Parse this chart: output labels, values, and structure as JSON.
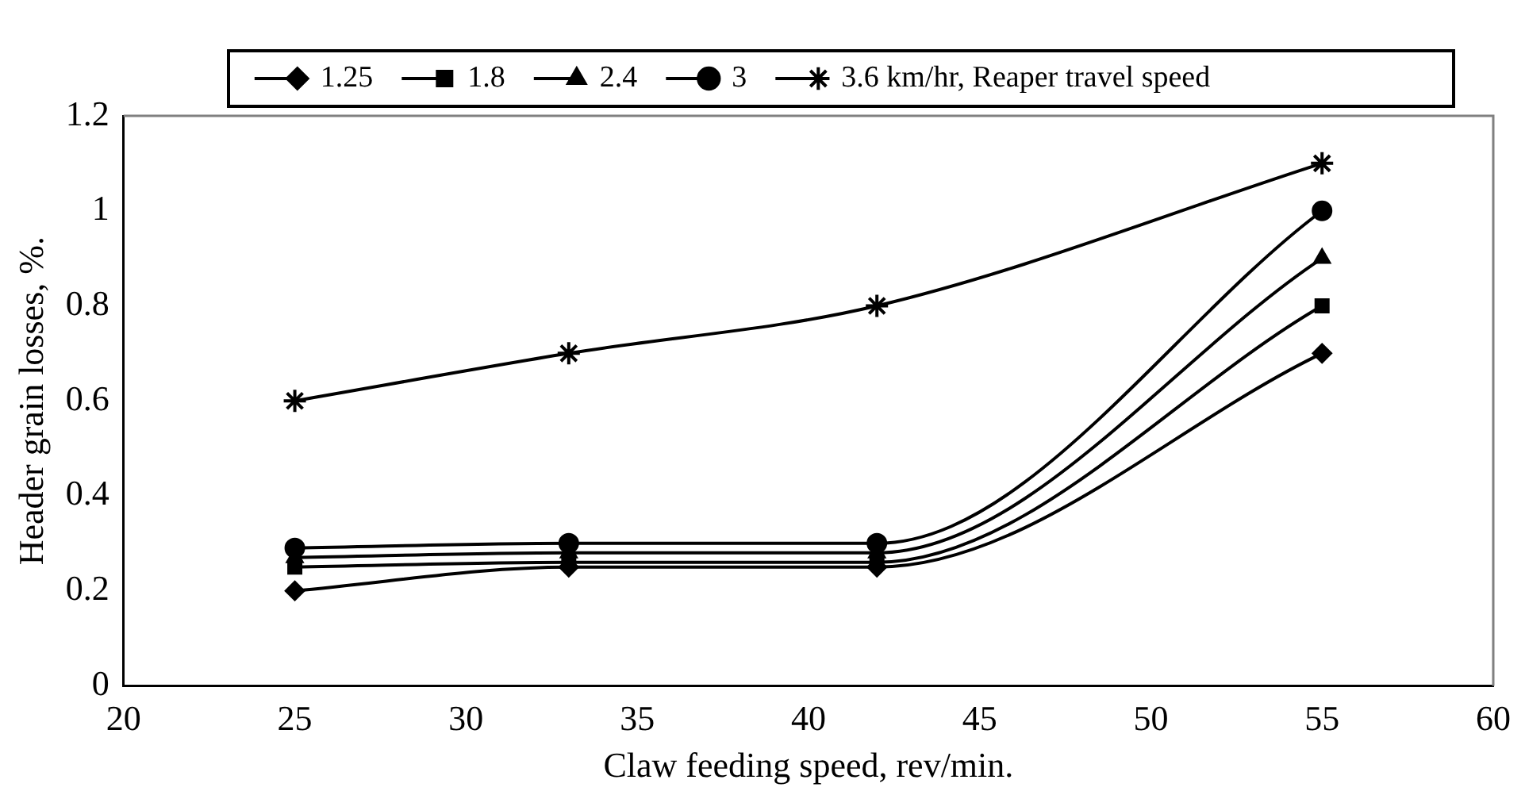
{
  "chart_data": {
    "type": "line",
    "xlabel": "Claw feeding speed, rev/min.",
    "ylabel": "Header grain losses, %.",
    "x": [
      25,
      33,
      42,
      55
    ],
    "series": [
      {
        "name": "1.25",
        "color": "#000000",
        "marker": "diamond",
        "values": [
          0.2,
          0.25,
          0.25,
          0.7
        ]
      },
      {
        "name": "1.8",
        "color": "#000000",
        "marker": "square",
        "values": [
          0.25,
          0.26,
          0.26,
          0.8
        ]
      },
      {
        "name": "2.4",
        "color": "#000000",
        "marker": "triangle",
        "values": [
          0.27,
          0.28,
          0.28,
          0.9
        ]
      },
      {
        "name": "3",
        "color": "#000000",
        "marker": "circle",
        "values": [
          0.29,
          0.3,
          0.3,
          1.0
        ]
      },
      {
        "name": "3.6 km/hr, Reaper travel speed",
        "color": "#000000",
        "marker": "cross",
        "values": [
          0.6,
          0.7,
          0.8,
          1.1
        ]
      }
    ],
    "xlim": [
      20,
      60
    ],
    "xticks": [
      20,
      25,
      30,
      35,
      40,
      45,
      50,
      55,
      60
    ],
    "ylim": [
      0,
      1.2
    ],
    "yticks": [
      0,
      0.2,
      0.4,
      0.6,
      0.8,
      1,
      1.2
    ],
    "grid": false,
    "legend": "top",
    "line_style": "solid"
  }
}
